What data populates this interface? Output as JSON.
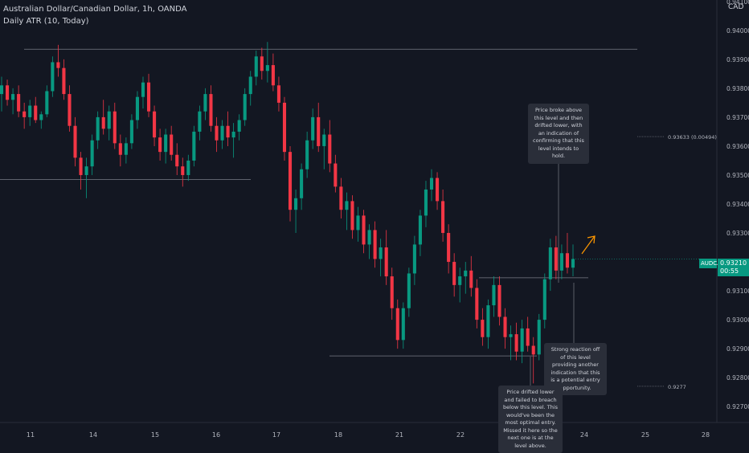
{
  "header": {
    "symbol_line": "Australian Dollar/Canadian Dollar, 1h, OANDA",
    "indicator_line": "Daily ATR (10, Today)",
    "currency": "CAD"
  },
  "price_tag": {
    "symbol": "AUDCAD",
    "price": "0.93210",
    "countdown": "00:55"
  },
  "level_labels": [
    {
      "text": "0.93633 (0.00494)",
      "price": 0.93633
    },
    {
      "text": "0.9277",
      "price": 0.9277
    }
  ],
  "notes": [
    {
      "text": "Price broke above this level and then drifted lower, with an indication of confirming that this level intends to hold."
    },
    {
      "text": "Strong reaction off of this level providing another indication that this is a potential entry opportunity."
    },
    {
      "text": "Price drifted lower and failed to breach below this level. This would've been the most optimal entry. Missed it here so the next one is at the level above."
    }
  ],
  "colors": {
    "background": "#131722",
    "up": "#089981",
    "down": "#f23645",
    "text": "#b2b5be",
    "line": "#787b86",
    "arrow": "#ff9800"
  },
  "chart_data": {
    "type": "candlestick",
    "y_ticks": [
      "0.94100",
      "0.94000",
      "0.93900",
      "0.93800",
      "0.93700",
      "0.93600",
      "0.93500",
      "0.93400",
      "0.93300",
      "0.93100",
      "0.93000",
      "0.92900",
      "0.92800",
      "0.92700"
    ],
    "ylim": [
      0.92645,
      0.94105
    ],
    "x_ticks": [
      "11",
      "14",
      "15",
      "16",
      "17",
      "18",
      "21",
      "22",
      "23",
      "24",
      "25",
      "28"
    ],
    "horizontal_levels": [
      0.93935,
      0.93485,
      0.93145,
      0.92875
    ],
    "candles": [
      {
        "o": 0.9378,
        "h": 0.9384,
        "l": 0.9372,
        "c": 0.9381
      },
      {
        "o": 0.9381,
        "h": 0.9383,
        "l": 0.9374,
        "c": 0.9376
      },
      {
        "o": 0.9376,
        "h": 0.938,
        "l": 0.9371,
        "c": 0.9378
      },
      {
        "o": 0.9378,
        "h": 0.9381,
        "l": 0.937,
        "c": 0.9372
      },
      {
        "o": 0.9372,
        "h": 0.9375,
        "l": 0.9366,
        "c": 0.937
      },
      {
        "o": 0.937,
        "h": 0.9376,
        "l": 0.9367,
        "c": 0.9374
      },
      {
        "o": 0.9374,
        "h": 0.9377,
        "l": 0.9368,
        "c": 0.9369
      },
      {
        "o": 0.9369,
        "h": 0.9372,
        "l": 0.9366,
        "c": 0.9371
      },
      {
        "o": 0.9371,
        "h": 0.9381,
        "l": 0.937,
        "c": 0.9379
      },
      {
        "o": 0.9379,
        "h": 0.9391,
        "l": 0.9377,
        "c": 0.9389
      },
      {
        "o": 0.9389,
        "h": 0.9395,
        "l": 0.9384,
        "c": 0.9387
      },
      {
        "o": 0.9387,
        "h": 0.939,
        "l": 0.9376,
        "c": 0.9378
      },
      {
        "o": 0.9378,
        "h": 0.9381,
        "l": 0.9365,
        "c": 0.9367
      },
      {
        "o": 0.9367,
        "h": 0.937,
        "l": 0.9353,
        "c": 0.9356
      },
      {
        "o": 0.9356,
        "h": 0.9358,
        "l": 0.9345,
        "c": 0.935
      },
      {
        "o": 0.935,
        "h": 0.9356,
        "l": 0.9342,
        "c": 0.9353
      },
      {
        "o": 0.9353,
        "h": 0.9364,
        "l": 0.935,
        "c": 0.9362
      },
      {
        "o": 0.9362,
        "h": 0.9372,
        "l": 0.9359,
        "c": 0.937
      },
      {
        "o": 0.937,
        "h": 0.9376,
        "l": 0.9364,
        "c": 0.9366
      },
      {
        "o": 0.9366,
        "h": 0.9374,
        "l": 0.9362,
        "c": 0.9372
      },
      {
        "o": 0.9372,
        "h": 0.9375,
        "l": 0.9359,
        "c": 0.9361
      },
      {
        "o": 0.9361,
        "h": 0.9364,
        "l": 0.9353,
        "c": 0.9357
      },
      {
        "o": 0.9357,
        "h": 0.9363,
        "l": 0.9354,
        "c": 0.9361
      },
      {
        "o": 0.9361,
        "h": 0.9371,
        "l": 0.9359,
        "c": 0.9369
      },
      {
        "o": 0.9369,
        "h": 0.9379,
        "l": 0.9366,
        "c": 0.9377
      },
      {
        "o": 0.9377,
        "h": 0.9384,
        "l": 0.9373,
        "c": 0.9382
      },
      {
        "o": 0.9382,
        "h": 0.9385,
        "l": 0.937,
        "c": 0.9372
      },
      {
        "o": 0.9372,
        "h": 0.9374,
        "l": 0.936,
        "c": 0.9363
      },
      {
        "o": 0.9363,
        "h": 0.9366,
        "l": 0.9355,
        "c": 0.9358
      },
      {
        "o": 0.9358,
        "h": 0.9366,
        "l": 0.9354,
        "c": 0.9364
      },
      {
        "o": 0.9364,
        "h": 0.9367,
        "l": 0.9355,
        "c": 0.9357
      },
      {
        "o": 0.9357,
        "h": 0.9361,
        "l": 0.935,
        "c": 0.9353
      },
      {
        "o": 0.9353,
        "h": 0.9356,
        "l": 0.9346,
        "c": 0.935
      },
      {
        "o": 0.935,
        "h": 0.9357,
        "l": 0.9348,
        "c": 0.9355
      },
      {
        "o": 0.9355,
        "h": 0.9367,
        "l": 0.9353,
        "c": 0.9365
      },
      {
        "o": 0.9365,
        "h": 0.9374,
        "l": 0.9362,
        "c": 0.9372
      },
      {
        "o": 0.9372,
        "h": 0.938,
        "l": 0.9369,
        "c": 0.9378
      },
      {
        "o": 0.9378,
        "h": 0.9381,
        "l": 0.9365,
        "c": 0.9367
      },
      {
        "o": 0.9367,
        "h": 0.937,
        "l": 0.9358,
        "c": 0.9362
      },
      {
        "o": 0.9362,
        "h": 0.9369,
        "l": 0.9359,
        "c": 0.9367
      },
      {
        "o": 0.9367,
        "h": 0.9372,
        "l": 0.936,
        "c": 0.9363
      },
      {
        "o": 0.9363,
        "h": 0.9368,
        "l": 0.9356,
        "c": 0.9365
      },
      {
        "o": 0.9365,
        "h": 0.9371,
        "l": 0.9362,
        "c": 0.9369
      },
      {
        "o": 0.9369,
        "h": 0.938,
        "l": 0.9367,
        "c": 0.9378
      },
      {
        "o": 0.9378,
        "h": 0.9386,
        "l": 0.9374,
        "c": 0.9384
      },
      {
        "o": 0.9384,
        "h": 0.9393,
        "l": 0.9381,
        "c": 0.9391
      },
      {
        "o": 0.9391,
        "h": 0.9394,
        "l": 0.9383,
        "c": 0.9386
      },
      {
        "o": 0.9386,
        "h": 0.9396,
        "l": 0.9382,
        "c": 0.9388
      },
      {
        "o": 0.9388,
        "h": 0.9392,
        "l": 0.9379,
        "c": 0.9381
      },
      {
        "o": 0.9381,
        "h": 0.9384,
        "l": 0.9372,
        "c": 0.9375
      },
      {
        "o": 0.9375,
        "h": 0.9377,
        "l": 0.9355,
        "c": 0.9358
      },
      {
        "o": 0.9358,
        "h": 0.936,
        "l": 0.9334,
        "c": 0.9338
      },
      {
        "o": 0.9338,
        "h": 0.9345,
        "l": 0.933,
        "c": 0.9342
      },
      {
        "o": 0.9342,
        "h": 0.9354,
        "l": 0.9338,
        "c": 0.9352
      },
      {
        "o": 0.9352,
        "h": 0.9365,
        "l": 0.9349,
        "c": 0.9362
      },
      {
        "o": 0.9362,
        "h": 0.9373,
        "l": 0.9359,
        "c": 0.937
      },
      {
        "o": 0.937,
        "h": 0.9375,
        "l": 0.9358,
        "c": 0.936
      },
      {
        "o": 0.936,
        "h": 0.9366,
        "l": 0.9352,
        "c": 0.9364
      },
      {
        "o": 0.9364,
        "h": 0.9369,
        "l": 0.9351,
        "c": 0.9354
      },
      {
        "o": 0.9354,
        "h": 0.9357,
        "l": 0.9344,
        "c": 0.9346
      },
      {
        "o": 0.9346,
        "h": 0.9349,
        "l": 0.9335,
        "c": 0.9338
      },
      {
        "o": 0.9338,
        "h": 0.9344,
        "l": 0.9331,
        "c": 0.9341
      },
      {
        "o": 0.9341,
        "h": 0.9343,
        "l": 0.9328,
        "c": 0.9331
      },
      {
        "o": 0.9331,
        "h": 0.9339,
        "l": 0.9327,
        "c": 0.9336
      },
      {
        "o": 0.9336,
        "h": 0.9338,
        "l": 0.9323,
        "c": 0.9326
      },
      {
        "o": 0.9326,
        "h": 0.9333,
        "l": 0.9321,
        "c": 0.9331
      },
      {
        "o": 0.9331,
        "h": 0.9334,
        "l": 0.9318,
        "c": 0.9321
      },
      {
        "o": 0.9321,
        "h": 0.9328,
        "l": 0.9315,
        "c": 0.9325
      },
      {
        "o": 0.9325,
        "h": 0.9331,
        "l": 0.9312,
        "c": 0.9315
      },
      {
        "o": 0.9315,
        "h": 0.9318,
        "l": 0.93,
        "c": 0.9304
      },
      {
        "o": 0.9304,
        "h": 0.9307,
        "l": 0.929,
        "c": 0.9293
      },
      {
        "o": 0.9293,
        "h": 0.9306,
        "l": 0.929,
        "c": 0.9304
      },
      {
        "o": 0.9304,
        "h": 0.9318,
        "l": 0.9301,
        "c": 0.9316
      },
      {
        "o": 0.9316,
        "h": 0.9329,
        "l": 0.9312,
        "c": 0.9326
      },
      {
        "o": 0.9326,
        "h": 0.9338,
        "l": 0.9322,
        "c": 0.9336
      },
      {
        "o": 0.9336,
        "h": 0.9348,
        "l": 0.9332,
        "c": 0.9345
      },
      {
        "o": 0.9345,
        "h": 0.9352,
        "l": 0.9341,
        "c": 0.9349
      },
      {
        "o": 0.9349,
        "h": 0.9351,
        "l": 0.9338,
        "c": 0.9341
      },
      {
        "o": 0.9341,
        "h": 0.9345,
        "l": 0.9327,
        "c": 0.933
      },
      {
        "o": 0.933,
        "h": 0.9333,
        "l": 0.9316,
        "c": 0.932
      },
      {
        "o": 0.932,
        "h": 0.9323,
        "l": 0.9308,
        "c": 0.9312
      },
      {
        "o": 0.9312,
        "h": 0.9318,
        "l": 0.9306,
        "c": 0.9315
      },
      {
        "o": 0.9315,
        "h": 0.932,
        "l": 0.9309,
        "c": 0.9317
      },
      {
        "o": 0.9317,
        "h": 0.9322,
        "l": 0.9308,
        "c": 0.9311
      },
      {
        "o": 0.9311,
        "h": 0.9314,
        "l": 0.9297,
        "c": 0.93
      },
      {
        "o": 0.93,
        "h": 0.9304,
        "l": 0.9291,
        "c": 0.9294
      },
      {
        "o": 0.9294,
        "h": 0.9307,
        "l": 0.929,
        "c": 0.9305
      },
      {
        "o": 0.9305,
        "h": 0.9315,
        "l": 0.9301,
        "c": 0.9312
      },
      {
        "o": 0.9312,
        "h": 0.9315,
        "l": 0.9298,
        "c": 0.9301
      },
      {
        "o": 0.9301,
        "h": 0.9304,
        "l": 0.929,
        "c": 0.9294
      },
      {
        "o": 0.9294,
        "h": 0.9298,
        "l": 0.9286,
        "c": 0.9295
      },
      {
        "o": 0.9295,
        "h": 0.9299,
        "l": 0.9286,
        "c": 0.9289
      },
      {
        "o": 0.9289,
        "h": 0.93,
        "l": 0.9285,
        "c": 0.9297
      },
      {
        "o": 0.9297,
        "h": 0.9301,
        "l": 0.9289,
        "c": 0.9291
      },
      {
        "o": 0.9291,
        "h": 0.9294,
        "l": 0.9278,
        "c": 0.9288
      },
      {
        "o": 0.9288,
        "h": 0.9302,
        "l": 0.9286,
        "c": 0.93
      },
      {
        "o": 0.93,
        "h": 0.9316,
        "l": 0.9297,
        "c": 0.9314
      },
      {
        "o": 0.9314,
        "h": 0.9328,
        "l": 0.931,
        "c": 0.9325
      },
      {
        "o": 0.9325,
        "h": 0.9329,
        "l": 0.9314,
        "c": 0.9317
      },
      {
        "o": 0.9317,
        "h": 0.9326,
        "l": 0.9314,
        "c": 0.9323
      },
      {
        "o": 0.9323,
        "h": 0.933,
        "l": 0.9316,
        "c": 0.9318
      },
      {
        "o": 0.9318,
        "h": 0.9326,
        "l": 0.9315,
        "c": 0.9321
      }
    ]
  }
}
